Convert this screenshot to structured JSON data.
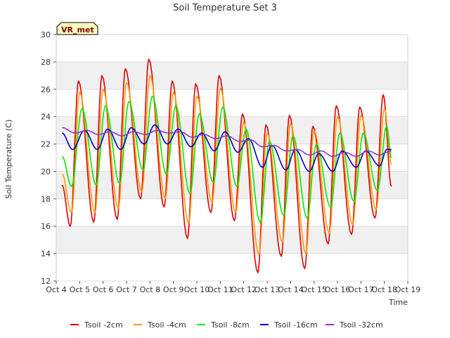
{
  "chart_data": {
    "type": "line",
    "title": "Soil Temperature Set 3",
    "xlabel": "Time",
    "ylabel": "Soil Temperature (C)",
    "badge": "VR_met",
    "ylim": [
      12,
      30
    ],
    "xlim": [
      4,
      19
    ],
    "y_ticks": [
      12,
      14,
      16,
      18,
      20,
      22,
      24,
      26,
      28,
      30
    ],
    "x_ticks": [
      {
        "value": 4,
        "label": "Oct 4"
      },
      {
        "value": 5,
        "label": "Oct 5"
      },
      {
        "value": 6,
        "label": "Oct 6"
      },
      {
        "value": 7,
        "label": "Oct 7"
      },
      {
        "value": 8,
        "label": "Oct 8"
      },
      {
        "value": 9,
        "label": "Oct 9"
      },
      {
        "value": 10,
        "label": "Oct 10"
      },
      {
        "value": 11,
        "label": "Oct 11"
      },
      {
        "value": 12,
        "label": "Oct 12"
      },
      {
        "value": 13,
        "label": "Oct 13"
      },
      {
        "value": 14,
        "label": "Oct 14"
      },
      {
        "value": 15,
        "label": "Oct 15"
      },
      {
        "value": 16,
        "label": "Oct 16"
      },
      {
        "value": 17,
        "label": "Oct 17"
      },
      {
        "value": 18,
        "label": "Oct 18"
      },
      {
        "value": 19,
        "label": "Oct 19"
      }
    ],
    "grid": "horizontal bands",
    "legend_position": "bottom",
    "series": [
      {
        "name": "Tsoil -2cm",
        "color": "#dd0000",
        "points": [
          [
            4.25,
            19.0
          ],
          [
            4.6,
            16.0
          ],
          [
            4.95,
            26.6
          ],
          [
            5.6,
            16.3
          ],
          [
            5.95,
            27.0
          ],
          [
            6.6,
            16.5
          ],
          [
            6.95,
            27.5
          ],
          [
            7.6,
            18.0
          ],
          [
            7.95,
            28.2
          ],
          [
            8.6,
            17.4
          ],
          [
            8.95,
            26.6
          ],
          [
            9.6,
            15.1
          ],
          [
            9.95,
            26.4
          ],
          [
            10.6,
            17.0
          ],
          [
            10.95,
            27.0
          ],
          [
            11.6,
            16.4
          ],
          [
            11.95,
            24.2
          ],
          [
            12.6,
            12.6
          ],
          [
            12.95,
            23.4
          ],
          [
            13.6,
            13.8
          ],
          [
            13.95,
            24.1
          ],
          [
            14.6,
            12.9
          ],
          [
            14.95,
            23.3
          ],
          [
            15.6,
            14.7
          ],
          [
            15.95,
            24.8
          ],
          [
            16.6,
            15.4
          ],
          [
            16.95,
            24.7
          ],
          [
            17.6,
            16.6
          ],
          [
            17.95,
            25.6
          ],
          [
            18.3,
            18.9
          ]
        ]
      },
      {
        "name": "Tsoil -4cm",
        "color": "#ff9900",
        "points": [
          [
            4.25,
            19.8
          ],
          [
            4.65,
            17.0
          ],
          [
            5.0,
            25.8
          ],
          [
            5.65,
            17.0
          ],
          [
            6.0,
            26.0
          ],
          [
            6.65,
            17.3
          ],
          [
            7.0,
            26.5
          ],
          [
            7.65,
            18.5
          ],
          [
            8.0,
            27.0
          ],
          [
            8.65,
            18.0
          ],
          [
            9.0,
            25.8
          ],
          [
            9.65,
            16.2
          ],
          [
            10.0,
            25.5
          ],
          [
            10.65,
            17.7
          ],
          [
            11.0,
            26.1
          ],
          [
            11.65,
            17.0
          ],
          [
            12.0,
            23.6
          ],
          [
            12.65,
            13.9
          ],
          [
            13.0,
            22.8
          ],
          [
            13.65,
            14.8
          ],
          [
            14.0,
            23.5
          ],
          [
            14.65,
            14.0
          ],
          [
            15.0,
            23.0
          ],
          [
            15.65,
            15.5
          ],
          [
            16.0,
            24.0
          ],
          [
            16.65,
            16.1
          ],
          [
            17.0,
            24.1
          ],
          [
            17.65,
            17.2
          ],
          [
            18.0,
            24.6
          ],
          [
            18.3,
            20.5
          ]
        ]
      },
      {
        "name": "Tsoil -8cm",
        "color": "#00ee00",
        "points": [
          [
            4.25,
            21.1
          ],
          [
            4.65,
            18.9
          ],
          [
            5.1,
            24.6
          ],
          [
            5.7,
            19.0
          ],
          [
            6.1,
            24.8
          ],
          [
            6.7,
            19.1
          ],
          [
            7.1,
            25.1
          ],
          [
            7.7,
            20.1
          ],
          [
            8.1,
            25.5
          ],
          [
            8.7,
            19.8
          ],
          [
            9.1,
            24.8
          ],
          [
            9.7,
            18.4
          ],
          [
            10.1,
            24.2
          ],
          [
            10.7,
            19.2
          ],
          [
            11.1,
            24.7
          ],
          [
            11.7,
            18.9
          ],
          [
            12.1,
            23.1
          ],
          [
            12.7,
            16.3
          ],
          [
            13.1,
            22.2
          ],
          [
            13.7,
            16.8
          ],
          [
            14.1,
            22.6
          ],
          [
            14.7,
            16.6
          ],
          [
            15.1,
            22.0
          ],
          [
            15.7,
            17.4
          ],
          [
            16.1,
            22.8
          ],
          [
            16.7,
            17.8
          ],
          [
            17.1,
            22.8
          ],
          [
            17.7,
            18.6
          ],
          [
            18.1,
            23.3
          ],
          [
            18.3,
            21.0
          ]
        ]
      },
      {
        "name": "Tsoil -16cm",
        "color": "#0000cc",
        "points": [
          [
            4.25,
            22.8
          ],
          [
            4.7,
            21.6
          ],
          [
            5.2,
            23.0
          ],
          [
            5.75,
            21.6
          ],
          [
            6.2,
            23.1
          ],
          [
            6.75,
            21.6
          ],
          [
            7.2,
            23.2
          ],
          [
            7.75,
            22.0
          ],
          [
            8.2,
            23.4
          ],
          [
            8.75,
            22.0
          ],
          [
            9.2,
            23.1
          ],
          [
            9.75,
            21.8
          ],
          [
            10.2,
            22.8
          ],
          [
            10.75,
            21.5
          ],
          [
            11.2,
            22.9
          ],
          [
            11.75,
            21.4
          ],
          [
            12.2,
            22.4
          ],
          [
            12.8,
            20.3
          ],
          [
            13.2,
            21.9
          ],
          [
            13.8,
            20.1
          ],
          [
            14.2,
            21.6
          ],
          [
            14.8,
            20.0
          ],
          [
            15.2,
            21.3
          ],
          [
            15.8,
            20.0
          ],
          [
            16.2,
            21.5
          ],
          [
            16.8,
            20.3
          ],
          [
            17.2,
            21.5
          ],
          [
            17.8,
            20.4
          ],
          [
            18.1,
            21.6
          ],
          [
            18.3,
            21.6
          ]
        ]
      },
      {
        "name": "Tsoil -32cm",
        "color": "#9933cc",
        "points": [
          [
            4.25,
            23.2
          ],
          [
            4.8,
            22.8
          ],
          [
            5.3,
            23.0
          ],
          [
            5.8,
            22.7
          ],
          [
            6.3,
            22.9
          ],
          [
            6.8,
            22.6
          ],
          [
            7.3,
            22.9
          ],
          [
            7.8,
            22.7
          ],
          [
            8.3,
            23.0
          ],
          [
            8.8,
            22.8
          ],
          [
            9.3,
            22.9
          ],
          [
            9.8,
            22.5
          ],
          [
            10.3,
            22.7
          ],
          [
            10.8,
            22.4
          ],
          [
            11.3,
            22.6
          ],
          [
            11.8,
            22.2
          ],
          [
            12.3,
            22.3
          ],
          [
            12.8,
            21.8
          ],
          [
            13.3,
            21.9
          ],
          [
            13.8,
            21.5
          ],
          [
            14.3,
            21.6
          ],
          [
            14.8,
            21.2
          ],
          [
            15.3,
            21.5
          ],
          [
            15.8,
            21.1
          ],
          [
            16.3,
            21.4
          ],
          [
            16.8,
            21.1
          ],
          [
            17.3,
            21.5
          ],
          [
            17.8,
            21.2
          ],
          [
            18.1,
            21.4
          ],
          [
            18.3,
            21.5
          ]
        ]
      }
    ]
  }
}
